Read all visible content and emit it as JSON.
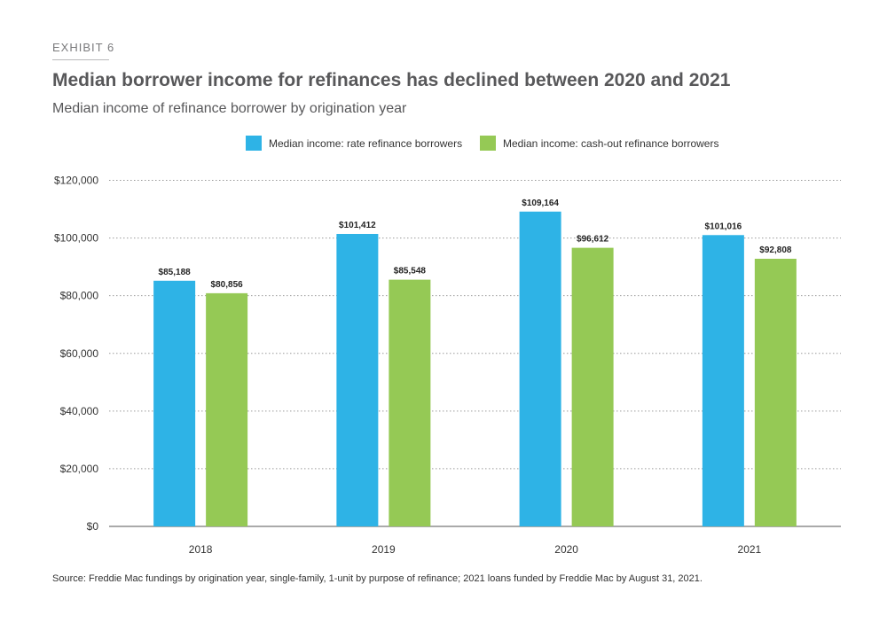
{
  "exhibit_label": "EXHIBIT 6",
  "source_note": "Source: Freddie Mac fundings by origination year, single-family, 1-unit by purpose of refinance; 2021 loans funded by Freddie Mac by August 31, 2021.",
  "colors": {
    "rate": "#2eb3e6",
    "cashout": "#95c955",
    "grid": "#9a9a9a",
    "axis": "#555555"
  },
  "chart_data": {
    "type": "bar",
    "title": "Median borrower income for refinances has declined between 2020 and 2021",
    "subtitle": "Median income of refinance borrower by origination year",
    "categories": [
      "2018",
      "2019",
      "2020",
      "2021"
    ],
    "series": [
      {
        "name": "Median income: rate refinance borrowers",
        "values": [
          85188,
          101412,
          109164,
          101016
        ],
        "labels": [
          "$85,188",
          "$101,412",
          "$109,164",
          "$101,016"
        ]
      },
      {
        "name": "Median income: cash-out refinance borrowers",
        "values": [
          80856,
          85548,
          96612,
          92808
        ],
        "labels": [
          "$80,856",
          "$85,548",
          "$96,612",
          "$92,808"
        ]
      }
    ],
    "ylim": [
      0,
      120000
    ],
    "yticks": [
      0,
      20000,
      40000,
      60000,
      80000,
      100000,
      120000
    ],
    "ytick_labels": [
      "$0",
      "$20,000",
      "$40,000",
      "$60,000",
      "$80,000",
      "$100,000",
      "$120,000"
    ],
    "xlabel": "",
    "ylabel": "",
    "grid": true,
    "legend": "top-center"
  }
}
